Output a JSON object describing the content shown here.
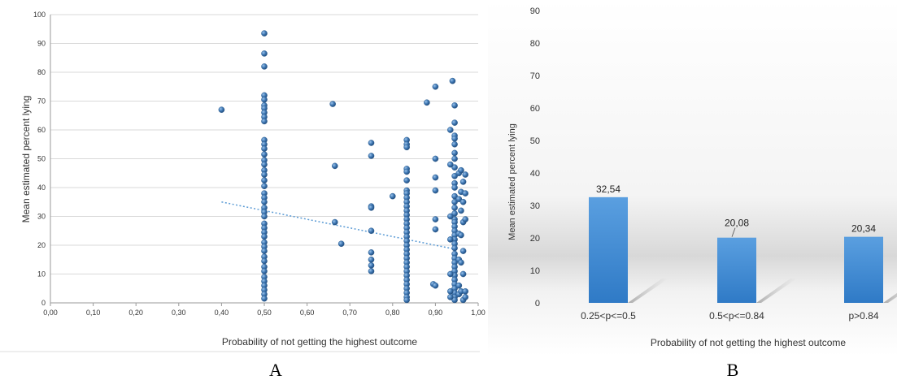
{
  "chart_data": [
    {
      "panel": "A",
      "type": "scatter",
      "xlabel": "Probability of not getting the highest outcome",
      "ylabel": "Mean estimated percent lying",
      "xlim": [
        0,
        1
      ],
      "ylim": [
        0,
        100
      ],
      "xticks": [
        "0,00",
        "0,10",
        "0,20",
        "0,30",
        "0,40",
        "0,50",
        "0,60",
        "0,70",
        "0,80",
        "0,90",
        "1,00"
      ],
      "xtick_values": [
        0,
        0.1,
        0.2,
        0.3,
        0.4,
        0.5,
        0.6,
        0.7,
        0.8,
        0.9,
        1.0
      ],
      "yticks": [
        "0",
        "10",
        "20",
        "30",
        "40",
        "50",
        "60",
        "70",
        "80",
        "90",
        "100"
      ],
      "ytick_values": [
        0,
        10,
        20,
        30,
        40,
        50,
        60,
        70,
        80,
        90,
        100
      ],
      "grid": "horizontal",
      "legend": "none",
      "marker_color": "#3f78b4",
      "trendline": {
        "x": [
          0.4,
          0.95
        ],
        "y": [
          35,
          18.5
        ],
        "color": "#5b9bd5",
        "style": "dotted"
      },
      "points": [
        [
          0.4,
          67
        ],
        [
          0.5,
          93.5
        ],
        [
          0.5,
          86.5
        ],
        [
          0.5,
          82
        ],
        [
          0.5,
          72
        ],
        [
          0.5,
          70.5
        ],
        [
          0.5,
          68.5
        ],
        [
          0.5,
          67.5
        ],
        [
          0.5,
          66
        ],
        [
          0.5,
          64.5
        ],
        [
          0.5,
          63
        ],
        [
          0.5,
          56.5
        ],
        [
          0.5,
          55
        ],
        [
          0.5,
          53.5
        ],
        [
          0.5,
          51.5
        ],
        [
          0.5,
          49.5
        ],
        [
          0.5,
          48
        ],
        [
          0.5,
          46
        ],
        [
          0.5,
          44.5
        ],
        [
          0.5,
          42.5
        ],
        [
          0.5,
          40.5
        ],
        [
          0.5,
          38
        ],
        [
          0.5,
          36.5
        ],
        [
          0.5,
          35
        ],
        [
          0.5,
          33
        ],
        [
          0.5,
          31.5
        ],
        [
          0.5,
          30
        ],
        [
          0.5,
          27.5
        ],
        [
          0.5,
          26
        ],
        [
          0.5,
          24.5
        ],
        [
          0.5,
          23
        ],
        [
          0.5,
          21
        ],
        [
          0.5,
          19.5
        ],
        [
          0.5,
          18
        ],
        [
          0.5,
          16
        ],
        [
          0.5,
          14.5
        ],
        [
          0.5,
          12.5
        ],
        [
          0.5,
          11
        ],
        [
          0.5,
          9
        ],
        [
          0.5,
          7.5
        ],
        [
          0.5,
          6
        ],
        [
          0.5,
          4.5
        ],
        [
          0.5,
          3
        ],
        [
          0.5,
          1.5
        ],
        [
          0.66,
          69
        ],
        [
          0.665,
          47.5
        ],
        [
          0.665,
          28
        ],
        [
          0.68,
          20.5
        ],
        [
          0.75,
          55.5
        ],
        [
          0.75,
          51
        ],
        [
          0.75,
          33.5
        ],
        [
          0.75,
          33
        ],
        [
          0.75,
          25
        ],
        [
          0.75,
          17.5
        ],
        [
          0.75,
          15
        ],
        [
          0.75,
          13
        ],
        [
          0.75,
          11
        ],
        [
          0.8,
          37
        ],
        [
          0.833,
          56.5
        ],
        [
          0.833,
          55
        ],
        [
          0.833,
          54
        ],
        [
          0.833,
          46.5
        ],
        [
          0.833,
          45.5
        ],
        [
          0.833,
          42.5
        ],
        [
          0.833,
          39
        ],
        [
          0.833,
          38
        ],
        [
          0.833,
          36.5
        ],
        [
          0.833,
          35
        ],
        [
          0.833,
          33.5
        ],
        [
          0.833,
          32
        ],
        [
          0.833,
          30.5
        ],
        [
          0.833,
          29
        ],
        [
          0.833,
          27.5
        ],
        [
          0.833,
          26
        ],
        [
          0.833,
          24.5
        ],
        [
          0.833,
          23
        ],
        [
          0.833,
          21.5
        ],
        [
          0.833,
          20
        ],
        [
          0.833,
          18.5
        ],
        [
          0.833,
          17
        ],
        [
          0.833,
          15.5
        ],
        [
          0.833,
          14
        ],
        [
          0.833,
          12.5
        ],
        [
          0.833,
          11
        ],
        [
          0.833,
          9.5
        ],
        [
          0.833,
          8
        ],
        [
          0.833,
          6.5
        ],
        [
          0.833,
          5
        ],
        [
          0.833,
          3.5
        ],
        [
          0.833,
          2
        ],
        [
          0.833,
          1
        ],
        [
          0.88,
          69.5
        ],
        [
          0.9,
          75
        ],
        [
          0.9,
          50
        ],
        [
          0.9,
          43.5
        ],
        [
          0.9,
          39
        ],
        [
          0.9,
          29
        ],
        [
          0.9,
          25.5
        ],
        [
          0.895,
          6.5
        ],
        [
          0.9,
          6
        ],
        [
          0.94,
          77
        ],
        [
          0.945,
          68.5
        ],
        [
          0.945,
          62.5
        ],
        [
          0.945,
          58
        ],
        [
          0.945,
          57
        ],
        [
          0.945,
          55
        ],
        [
          0.945,
          52
        ],
        [
          0.945,
          50
        ],
        [
          0.945,
          47
        ],
        [
          0.945,
          44
        ],
        [
          0.945,
          41.5
        ],
        [
          0.945,
          40
        ],
        [
          0.945,
          37
        ],
        [
          0.945,
          35
        ],
        [
          0.945,
          33
        ],
        [
          0.945,
          31
        ],
        [
          0.945,
          29
        ],
        [
          0.945,
          28
        ],
        [
          0.945,
          26.5
        ],
        [
          0.945,
          25
        ],
        [
          0.945,
          23.5
        ],
        [
          0.945,
          22
        ],
        [
          0.945,
          20.5
        ],
        [
          0.945,
          19
        ],
        [
          0.945,
          17
        ],
        [
          0.945,
          15.5
        ],
        [
          0.945,
          14
        ],
        [
          0.945,
          12.5
        ],
        [
          0.945,
          11
        ],
        [
          0.945,
          9.5
        ],
        [
          0.945,
          8
        ],
        [
          0.945,
          6.5
        ],
        [
          0.945,
          5
        ],
        [
          0.945,
          3.5
        ],
        [
          0.945,
          2
        ],
        [
          0.945,
          1
        ],
        [
          0.935,
          60
        ],
        [
          0.935,
          48
        ],
        [
          0.935,
          30
        ],
        [
          0.935,
          22
        ],
        [
          0.935,
          10
        ],
        [
          0.935,
          4
        ],
        [
          0.935,
          2
        ],
        [
          0.955,
          45
        ],
        [
          0.955,
          36
        ],
        [
          0.955,
          24
        ],
        [
          0.955,
          15
        ],
        [
          0.955,
          6
        ],
        [
          0.955,
          3
        ],
        [
          0.96,
          46
        ],
        [
          0.965,
          42
        ],
        [
          0.96,
          38.5
        ],
        [
          0.965,
          35
        ],
        [
          0.96,
          32
        ],
        [
          0.965,
          28
        ],
        [
          0.96,
          23.5
        ],
        [
          0.965,
          18
        ],
        [
          0.96,
          14
        ],
        [
          0.965,
          10
        ],
        [
          0.96,
          4
        ],
        [
          0.965,
          1
        ],
        [
          0.97,
          44.5
        ],
        [
          0.97,
          38
        ],
        [
          0.97,
          29
        ],
        [
          0.97,
          4
        ],
        [
          0.97,
          2
        ]
      ]
    },
    {
      "panel": "B",
      "type": "bar",
      "categories": [
        "0.25<p<=0.5",
        "0.5<p<=0.84",
        "p>0.84"
      ],
      "values": [
        32.54,
        20.08,
        20.34
      ],
      "data_labels": [
        "32,54",
        "20,08",
        "20,34"
      ],
      "xlabel": "Probability of not getting the highest outcome",
      "ylabel": "Mean estimated percent lying",
      "ylim": [
        0,
        90
      ],
      "yticks": [
        "0",
        "10",
        "20",
        "30",
        "40",
        "50",
        "60",
        "70",
        "80",
        "90"
      ],
      "ytick_values": [
        0,
        10,
        20,
        30,
        40,
        50,
        60,
        70,
        80,
        90
      ],
      "bar_color": "#4a8fd3",
      "grid": "none",
      "legend": "none"
    }
  ],
  "panel_labels": {
    "a": "A",
    "b": "B"
  }
}
